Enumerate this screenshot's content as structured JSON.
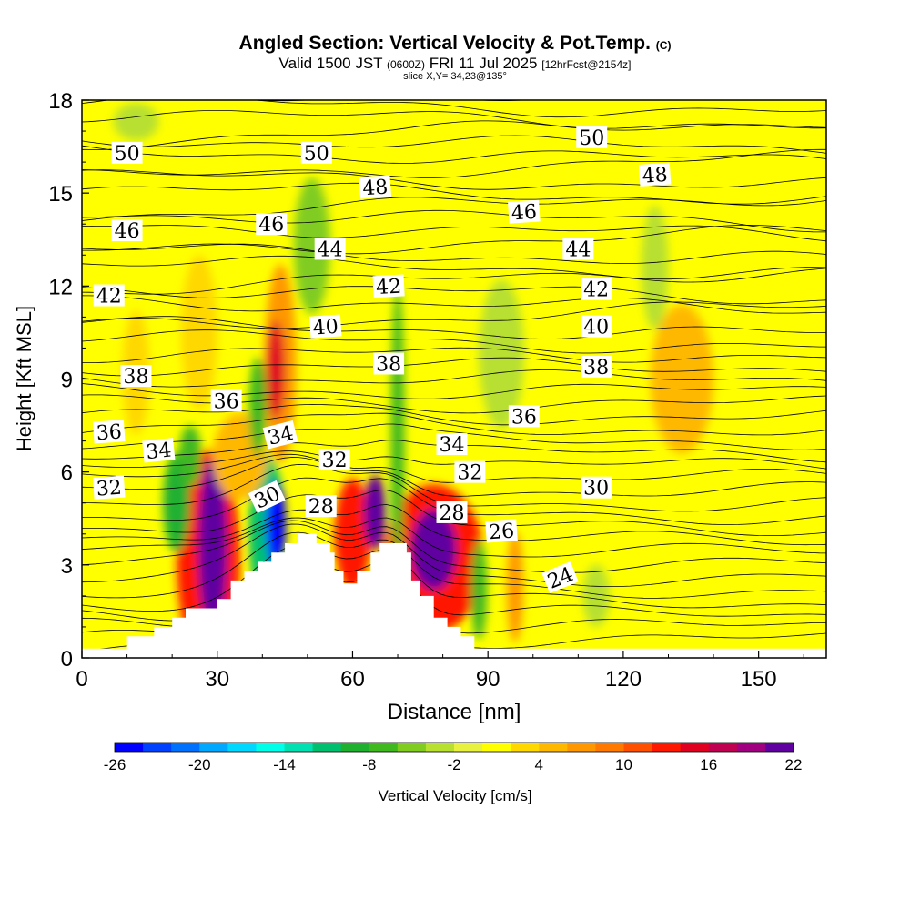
{
  "header": {
    "title": "Angled Section: Vertical Velocity & Pot.Temp.",
    "title_mark": "(C)",
    "valid_a": "Valid 1500 JST",
    "valid_b": "(0600Z)",
    "valid_c": "FRI 11 Jul 2025",
    "valid_d": "[12hrFcst@2154z]",
    "slice": "slice X,Y= 34,23@135°"
  },
  "chart_data": {
    "type": "heatmap",
    "xlabel": "Distance [nm]",
    "ylabel": "Height [Kft MSL]",
    "xlim": [
      0,
      165
    ],
    "ylim": [
      0,
      18
    ],
    "xticks": [
      0,
      30,
      60,
      90,
      120,
      150
    ],
    "yticks": [
      0,
      3,
      6,
      9,
      12,
      15,
      18
    ],
    "colorbar": {
      "label": "Vertical Velocity [cm/s]",
      "ticks": [
        -26,
        -20,
        -14,
        -8,
        -2,
        4,
        10,
        16,
        22
      ],
      "bins": [
        -26,
        -24,
        -22,
        -20,
        -18,
        -16,
        -14,
        -12,
        -10,
        -8,
        -6,
        -4,
        -2,
        0,
        2,
        4,
        6,
        8,
        10,
        12,
        14,
        16,
        18,
        20,
        22
      ],
      "colors": [
        "#0000ff",
        "#0040ff",
        "#0070ff",
        "#00a8ff",
        "#00d8ff",
        "#00ffe8",
        "#00e0b0",
        "#00c070",
        "#20b030",
        "#40b820",
        "#80cc20",
        "#b8e030",
        "#e8f040",
        "#ffff00",
        "#ffd800",
        "#ffb800",
        "#ff9800",
        "#ff7800",
        "#ff5000",
        "#ff1800",
        "#e00020",
        "#c00050",
        "#a00080",
        "#6000a0"
      ]
    },
    "terrain": [
      [
        0,
        0.3
      ],
      [
        10,
        0.3
      ],
      [
        10,
        0.7
      ],
      [
        16,
        0.7
      ],
      [
        16,
        1.0
      ],
      [
        20,
        1.0
      ],
      [
        20,
        1.3
      ],
      [
        23,
        1.3
      ],
      [
        23,
        1.6
      ],
      [
        30,
        1.6
      ],
      [
        30,
        1.9
      ],
      [
        33,
        1.9
      ],
      [
        33,
        2.5
      ],
      [
        36,
        2.5
      ],
      [
        36,
        2.8
      ],
      [
        39,
        2.8
      ],
      [
        39,
        3.1
      ],
      [
        42,
        3.1
      ],
      [
        42,
        3.4
      ],
      [
        45,
        3.4
      ],
      [
        45,
        3.7
      ],
      [
        48,
        3.7
      ],
      [
        48,
        4.0
      ],
      [
        52,
        4.0
      ],
      [
        52,
        3.7
      ],
      [
        55,
        3.7
      ],
      [
        55,
        3.4
      ],
      [
        56,
        3.4
      ],
      [
        56,
        2.8
      ],
      [
        58,
        2.8
      ],
      [
        58,
        2.4
      ],
      [
        61,
        2.4
      ],
      [
        61,
        2.8
      ],
      [
        64,
        2.8
      ],
      [
        64,
        3.4
      ],
      [
        66,
        3.4
      ],
      [
        66,
        3.7
      ],
      [
        72,
        3.7
      ],
      [
        72,
        3.4
      ],
      [
        73,
        3.4
      ],
      [
        73,
        2.5
      ],
      [
        75,
        2.5
      ],
      [
        75,
        2.0
      ],
      [
        78,
        2.0
      ],
      [
        78,
        1.3
      ],
      [
        81,
        1.3
      ],
      [
        81,
        1.0
      ],
      [
        84,
        1.0
      ],
      [
        84,
        0.7
      ],
      [
        87,
        0.7
      ],
      [
        87,
        0.3
      ],
      [
        165,
        0.3
      ]
    ],
    "wcells": [
      {
        "x": 29,
        "y": 3.6,
        "rx": 3.2,
        "ry": 2.8,
        "v": 22
      },
      {
        "x": 28,
        "y": 3.2,
        "rx": 7,
        "ry": 3.5,
        "v": 12
      },
      {
        "x": 78,
        "y": 3.5,
        "rx": 5,
        "ry": 1.3,
        "v": 22
      },
      {
        "x": 78,
        "y": 3.2,
        "rx": 11,
        "ry": 2.4,
        "v": 12
      },
      {
        "x": 65,
        "y": 4.7,
        "rx": 2.4,
        "ry": 1.2,
        "v": 20
      },
      {
        "x": 60,
        "y": 4.0,
        "rx": 4,
        "ry": 1.8,
        "v": 12
      },
      {
        "x": 43,
        "y": 4.3,
        "rx": 2.2,
        "ry": 1.4,
        "v": -26
      },
      {
        "x": 41,
        "y": 4.1,
        "rx": 4,
        "ry": 2.4,
        "v": -12
      },
      {
        "x": 21,
        "y": 5.0,
        "rx": 3,
        "ry": 1.6,
        "v": -9
      },
      {
        "x": 24,
        "y": 6.5,
        "rx": 2.5,
        "ry": 1.0,
        "v": -8
      },
      {
        "x": 39,
        "y": 8.1,
        "rx": 2,
        "ry": 1.6,
        "v": -7
      },
      {
        "x": 51,
        "y": 13.3,
        "rx": 4,
        "ry": 2.2,
        "v": -5
      },
      {
        "x": 70,
        "y": 7.2,
        "rx": 1.5,
        "ry": 4.8,
        "v": -8
      },
      {
        "x": 93,
        "y": 9.8,
        "rx": 5,
        "ry": 2.4,
        "v": -4
      },
      {
        "x": 88,
        "y": 2.2,
        "rx": 1.8,
        "ry": 1.6,
        "v": -8
      },
      {
        "x": 114,
        "y": 2.0,
        "rx": 3,
        "ry": 1.0,
        "v": -3
      },
      {
        "x": 127,
        "y": 12.6,
        "rx": 3,
        "ry": 2.0,
        "v": -3
      },
      {
        "x": 12,
        "y": 17.3,
        "rx": 5,
        "ry": 0.6,
        "v": -3
      },
      {
        "x": 43,
        "y": 9.3,
        "rx": 2,
        "ry": 1.6,
        "v": 14
      },
      {
        "x": 44,
        "y": 9.5,
        "rx": 3.5,
        "ry": 3.2,
        "v": 6
      },
      {
        "x": 96,
        "y": 2.3,
        "rx": 1.8,
        "ry": 1.8,
        "v": 6
      },
      {
        "x": 133,
        "y": 9.0,
        "rx": 7,
        "ry": 2.4,
        "v": 4
      },
      {
        "x": 35,
        "y": 6.5,
        "rx": 6,
        "ry": 1.4,
        "v": 4
      },
      {
        "x": 26,
        "y": 10.5,
        "rx": 4,
        "ry": 2.5,
        "v": 3
      },
      {
        "x": 12,
        "y": 9.2,
        "rx": 3,
        "ry": 2.0,
        "v": 3
      }
    ],
    "theta_labels": [
      {
        "text": "50",
        "x": 10,
        "y": 16.3,
        "r": 0
      },
      {
        "text": "50",
        "x": 52,
        "y": 16.3,
        "r": 0
      },
      {
        "text": "50",
        "x": 113,
        "y": 16.8,
        "r": 0
      },
      {
        "text": "48",
        "x": 65,
        "y": 15.2,
        "r": -4
      },
      {
        "text": "48",
        "x": 127,
        "y": 15.6,
        "r": -4
      },
      {
        "text": "46",
        "x": 10,
        "y": 13.8,
        "r": 0
      },
      {
        "text": "46",
        "x": 42,
        "y": 14.0,
        "r": 0
      },
      {
        "text": "46",
        "x": 98,
        "y": 14.4,
        "r": -4
      },
      {
        "text": "44",
        "x": 55,
        "y": 13.2,
        "r": 0
      },
      {
        "text": "44",
        "x": 110,
        "y": 13.2,
        "r": 0
      },
      {
        "text": "42",
        "x": 6,
        "y": 11.7,
        "r": 0
      },
      {
        "text": "42",
        "x": 68,
        "y": 12.0,
        "r": -3
      },
      {
        "text": "42",
        "x": 114,
        "y": 11.9,
        "r": 0
      },
      {
        "text": "40",
        "x": 54,
        "y": 10.7,
        "r": -4
      },
      {
        "text": "40",
        "x": 114,
        "y": 10.7,
        "r": 0
      },
      {
        "text": "38",
        "x": 12,
        "y": 9.1,
        "r": 0
      },
      {
        "text": "38",
        "x": 68,
        "y": 9.5,
        "r": 0
      },
      {
        "text": "38",
        "x": 114,
        "y": 9.4,
        "r": 0
      },
      {
        "text": "36",
        "x": 6,
        "y": 7.3,
        "r": -4
      },
      {
        "text": "36",
        "x": 32,
        "y": 8.3,
        "r": 0
      },
      {
        "text": "36",
        "x": 98,
        "y": 7.8,
        "r": 0
      },
      {
        "text": "34",
        "x": 17,
        "y": 6.7,
        "r": -6
      },
      {
        "text": "34",
        "x": 44,
        "y": 7.2,
        "r": -14
      },
      {
        "text": "34",
        "x": 82,
        "y": 6.9,
        "r": 0
      },
      {
        "text": "32",
        "x": 6,
        "y": 5.5,
        "r": -4
      },
      {
        "text": "32",
        "x": 56,
        "y": 6.4,
        "r": 0
      },
      {
        "text": "32",
        "x": 86,
        "y": 6.0,
        "r": 0
      },
      {
        "text": "30",
        "x": 41,
        "y": 5.2,
        "r": -25
      },
      {
        "text": "30",
        "x": 114,
        "y": 5.5,
        "r": 0
      },
      {
        "text": "28",
        "x": 53,
        "y": 4.9,
        "r": 0
      },
      {
        "text": "28",
        "x": 82,
        "y": 4.7,
        "r": 0
      },
      {
        "text": "26",
        "x": 93,
        "y": 4.1,
        "r": -4
      },
      {
        "text": "24",
        "x": 106,
        "y": 2.6,
        "r": -22
      }
    ]
  }
}
